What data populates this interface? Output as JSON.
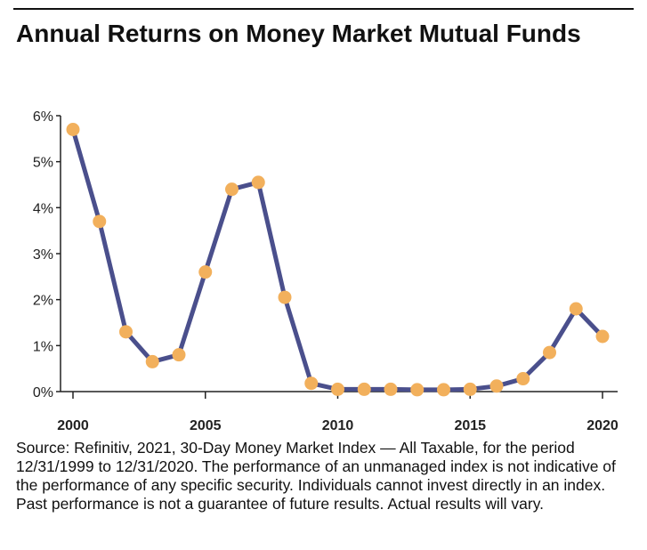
{
  "title": "Annual Returns on Money Market Mutual Funds",
  "source_note": "Source: Refinitiv, 2021, 30-Day Money Market Index — All Taxable, for the period 12/31/1999 to 12/31/2020. The performance of an unmanaged index is not indicative of the performance of any specific security. Individuals cannot invest directly in an index. Past performance is not a guarantee of future results. Actual results will vary.",
  "chart_data": {
    "type": "line",
    "title": "Annual Returns on Money Market Mutual Funds",
    "xlabel": "",
    "ylabel": "",
    "x": [
      2000,
      2001,
      2002,
      2003,
      2004,
      2005,
      2006,
      2007,
      2008,
      2009,
      2010,
      2011,
      2012,
      2013,
      2014,
      2015,
      2016,
      2017,
      2018,
      2019,
      2020
    ],
    "series": [
      {
        "name": "",
        "values": [
          5.7,
          3.7,
          1.3,
          0.65,
          0.8,
          2.6,
          4.4,
          4.55,
          2.05,
          0.18,
          0.05,
          0.05,
          0.05,
          0.04,
          0.04,
          0.05,
          0.12,
          0.28,
          0.85,
          1.8,
          1.2
        ]
      }
    ],
    "xlim": [
      2000,
      2020
    ],
    "ylim": [
      0,
      6
    ],
    "x_ticks": [
      "2000",
      "2005",
      "2010",
      "2015",
      "2020"
    ],
    "y_ticks": [
      "0%",
      "1%",
      "2%",
      "3%",
      "4%",
      "5%",
      "6%"
    ],
    "grid": false,
    "legend": "none",
    "colors": {
      "line": "#4a4f8c",
      "marker": "#f2b05c",
      "axis": "#222222"
    }
  }
}
